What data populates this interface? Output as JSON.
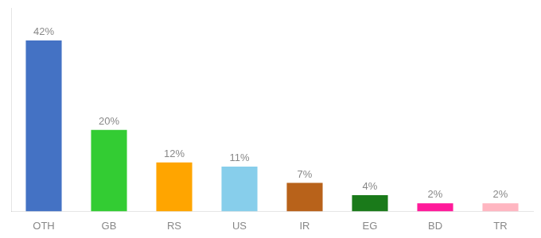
{
  "chart_data": {
    "type": "bar",
    "categories": [
      "OTH",
      "GB",
      "RS",
      "US",
      "IR",
      "EG",
      "BD",
      "TR"
    ],
    "values": [
      42,
      20,
      12,
      11,
      7,
      4,
      2,
      2
    ],
    "value_labels": [
      "42%",
      "20%",
      "12%",
      "11%",
      "7%",
      "4%",
      "2%",
      "2%"
    ],
    "colors": [
      "#4472C4",
      "#33CC33",
      "#FFA500",
      "#87CEEB",
      "#B8621A",
      "#1A7A1A",
      "#FF1A9A",
      "#FFB6C1"
    ],
    "ylim": [
      0,
      50
    ],
    "grid": false,
    "data_labels": true,
    "tick_labels": "x"
  }
}
